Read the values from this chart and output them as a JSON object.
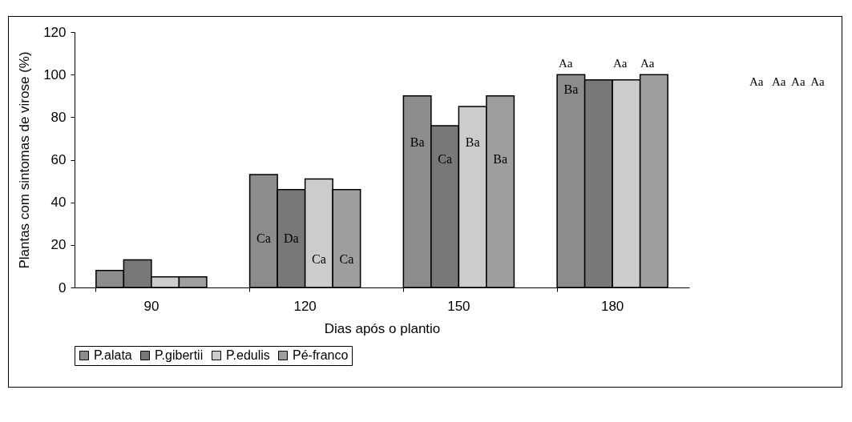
{
  "chart_data": {
    "type": "bar",
    "xlabel": "Dias após o plantio",
    "ylabel": "Plantas com sintomas de virose (%)",
    "categories": [
      "90",
      "120",
      "150",
      "180"
    ],
    "series": [
      {
        "name": "P.alata",
        "color": "#8c8c8c",
        "values": [
          8,
          53,
          90,
          100
        ]
      },
      {
        "name": "P.gibertii",
        "color": "#787878",
        "values": [
          13,
          46,
          76,
          97.5
        ]
      },
      {
        "name": "P.edulis",
        "color": "#cccccc",
        "values": [
          5,
          51,
          85,
          97.5
        ]
      },
      {
        "name": "Pé-franco",
        "color": "#9e9e9e",
        "values": [
          5,
          46,
          90,
          100
        ]
      }
    ],
    "ylim": [
      0,
      120
    ],
    "yticks": [
      0,
      20,
      40,
      60,
      80,
      100,
      120
    ],
    "grid": false,
    "legend": "bottom",
    "annotations": [
      {
        "text": "Ca",
        "x": "120",
        "y": 20
      },
      {
        "text": "Da",
        "x": "120",
        "y": 20
      },
      {
        "text": "Ca",
        "x": "120",
        "y": 10
      },
      {
        "text": "Ca",
        "x": "120",
        "y": 10
      },
      {
        "text": "Ba",
        "x": "150",
        "y": 65
      },
      {
        "text": "Ca",
        "x": "150",
        "y": 57
      },
      {
        "text": "Ba",
        "x": "150",
        "y": 65
      },
      {
        "text": "Ba",
        "x": "150",
        "y": 57
      },
      "Aa",
      {
        "text": "Ba",
        "x": "180",
        "y": 90
      },
      "Aa",
      "Aa",
      "Aa   Aa  Aa  Aa"
    ]
  }
}
